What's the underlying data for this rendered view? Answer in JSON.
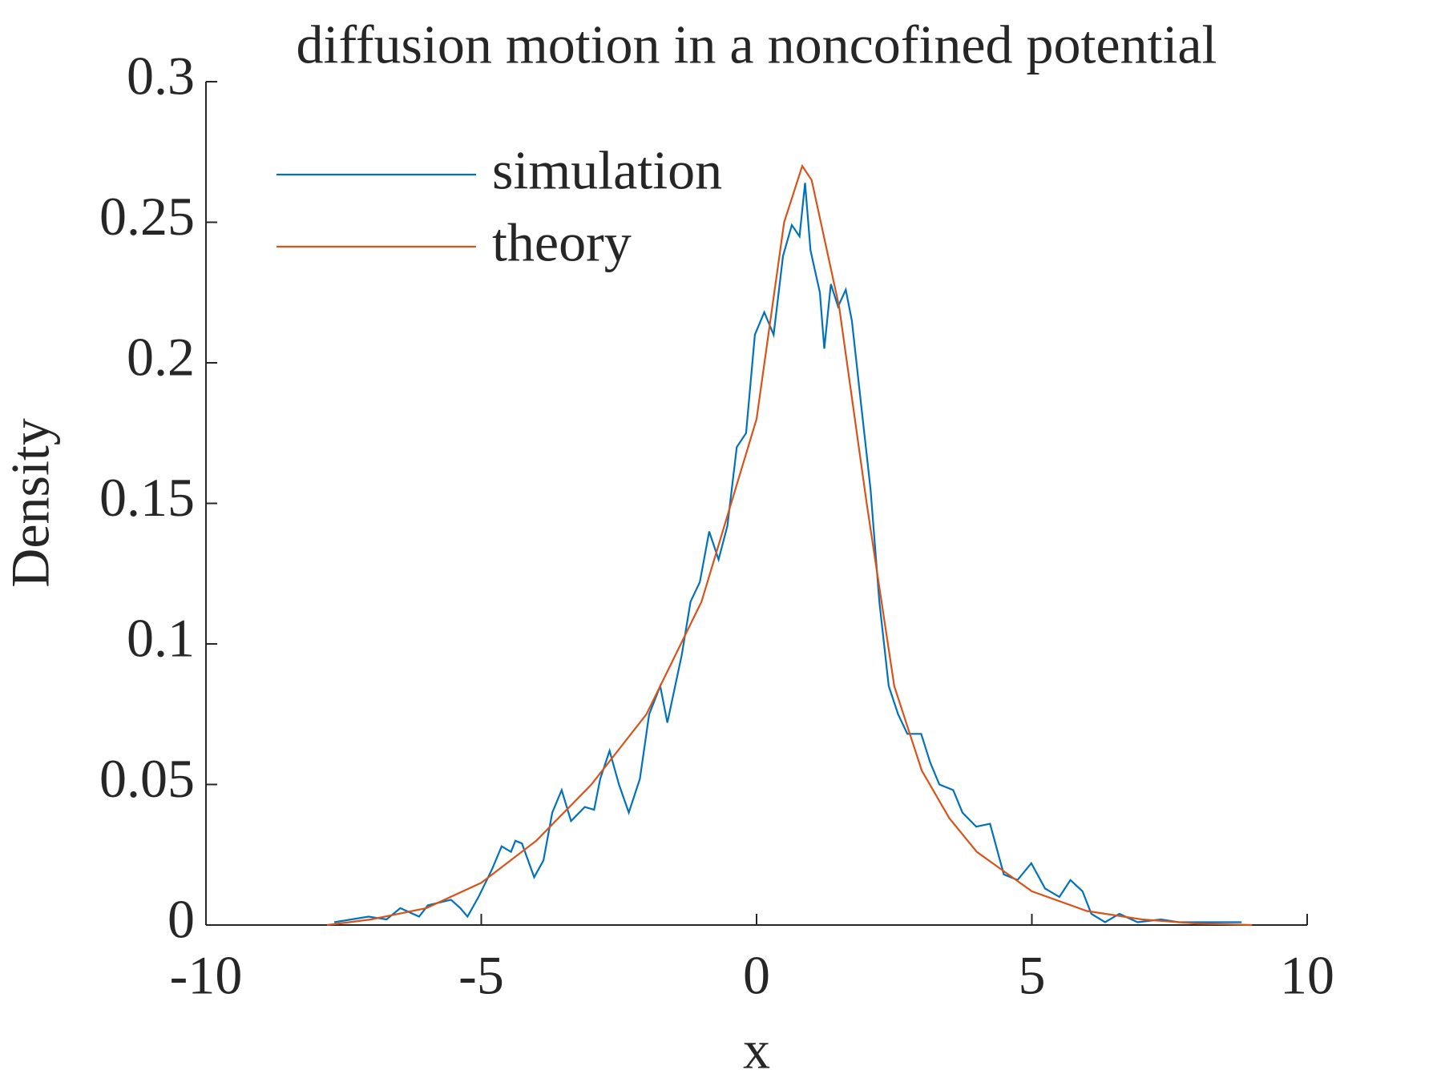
{
  "chart_data": {
    "type": "line",
    "title": "diffusion motion in a noncofined potential",
    "x_label": "x",
    "y_label": "Density",
    "xlim": [
      -10,
      10
    ],
    "ylim": [
      0,
      0.3
    ],
    "xticks": [
      -10,
      -5,
      0,
      5,
      10
    ],
    "yticks": [
      0,
      0.05,
      0.1,
      0.15,
      0.2,
      0.25,
      0.3
    ],
    "legend": "upper left",
    "series": [
      {
        "name": "simulation",
        "color": "#0072bd",
        "x": [
          -7.67,
          -7.05,
          -6.72,
          -6.47,
          -6.13,
          -5.97,
          -5.55,
          -5.38,
          -5.25,
          -5.05,
          -4.8,
          -4.63,
          -4.46,
          -4.38,
          -4.26,
          -4.04,
          -3.87,
          -3.71,
          -3.54,
          -3.37,
          -3.12,
          -2.95,
          -2.84,
          -2.67,
          -2.5,
          -2.32,
          -2.12,
          -1.95,
          -1.75,
          -1.62,
          -1.36,
          -1.2,
          -1.03,
          -0.86,
          -0.69,
          -0.53,
          -0.36,
          -0.19,
          -0.03,
          0.14,
          0.31,
          0.48,
          0.64,
          0.78,
          0.88,
          0.98,
          1.15,
          1.23,
          1.35,
          1.48,
          1.62,
          1.73,
          1.9,
          2.07,
          2.23,
          2.4,
          2.57,
          2.74,
          2.99,
          3.15,
          3.32,
          3.57,
          3.74,
          3.99,
          4.24,
          4.49,
          4.74,
          4.99,
          5.24,
          5.5,
          5.7,
          5.92,
          6.08,
          6.33,
          6.59,
          6.92,
          7.34,
          7.67,
          8.81
        ],
        "values": [
          0.001,
          0.003,
          0.002,
          0.006,
          0.003,
          0.007,
          0.009,
          0.006,
          0.003,
          0.01,
          0.02,
          0.028,
          0.026,
          0.03,
          0.029,
          0.017,
          0.023,
          0.04,
          0.048,
          0.037,
          0.042,
          0.041,
          0.052,
          0.062,
          0.05,
          0.04,
          0.052,
          0.075,
          0.085,
          0.072,
          0.096,
          0.115,
          0.122,
          0.14,
          0.13,
          0.142,
          0.17,
          0.175,
          0.21,
          0.218,
          0.21,
          0.238,
          0.249,
          0.245,
          0.264,
          0.24,
          0.225,
          0.205,
          0.228,
          0.22,
          0.226,
          0.215,
          0.185,
          0.155,
          0.115,
          0.085,
          0.075,
          0.068,
          0.068,
          0.058,
          0.05,
          0.048,
          0.04,
          0.035,
          0.036,
          0.018,
          0.016,
          0.022,
          0.013,
          0.01,
          0.016,
          0.012,
          0.004,
          0.001,
          0.004,
          0.001,
          0.002,
          0.001,
          0.001
        ]
      },
      {
        "name": "theory",
        "color": "#d95319",
        "x": [
          -7.8,
          -7,
          -6,
          -5,
          -4,
          -3,
          -2,
          -1,
          0,
          0.5,
          0.83,
          1,
          1.5,
          2,
          2.5,
          3,
          3.5,
          4,
          5,
          6,
          7,
          8,
          9
        ],
        "values": [
          0,
          0.002,
          0.006,
          0.015,
          0.03,
          0.05,
          0.075,
          0.115,
          0.18,
          0.25,
          0.27,
          0.265,
          0.22,
          0.15,
          0.085,
          0.055,
          0.038,
          0.026,
          0.012,
          0.005,
          0.002,
          0.0005,
          0
        ]
      }
    ]
  }
}
